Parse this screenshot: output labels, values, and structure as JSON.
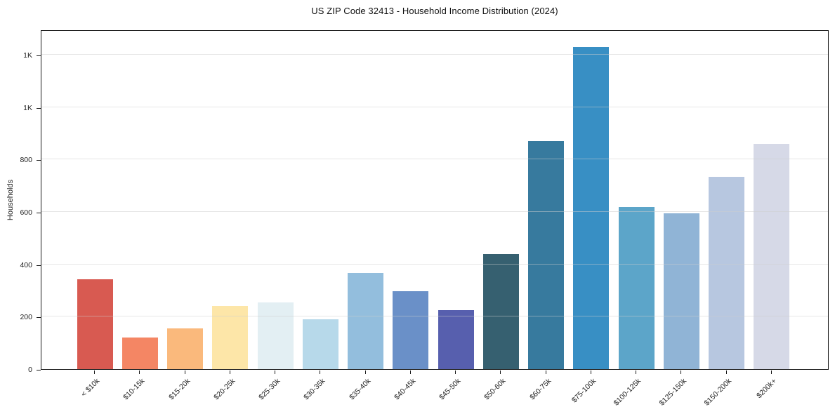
{
  "chart_data": {
    "type": "bar",
    "title": "US ZIP Code 32413 - Household Income Distribution (2024)",
    "xlabel": "",
    "ylabel": "Households",
    "categories": [
      "< $10k",
      "$10-15k",
      "$15-20k",
      "$20-25k",
      "$25-30k",
      "$30-35k",
      "$35-40k",
      "$40-45k",
      "$45-50k",
      "$50-60k",
      "$60-75k",
      "$75-100k",
      "$100-125k",
      "$125-150k",
      "$150-200k",
      "$200k+"
    ],
    "values": [
      343,
      120,
      155,
      240,
      254,
      189,
      366,
      297,
      226,
      440,
      870,
      1230,
      620,
      595,
      735,
      860
    ],
    "bar_colors": [
      "#d85a51",
      "#f48664",
      "#fab97c",
      "#fde6a8",
      "#e3eff3",
      "#b7d9ea",
      "#93bedd",
      "#6a90c8",
      "#575fae",
      "#366070",
      "#377a9e",
      "#388fc4",
      "#5ca5c9",
      "#90b4d6",
      "#b7c7e0",
      "#d6d9e7"
    ],
    "ylim": [
      0,
      1296
    ],
    "yticks": {
      "values": [
        0,
        200,
        400,
        600,
        800,
        1000,
        1200
      ],
      "labels": [
        "0",
        "200",
        "400",
        "600",
        "800",
        "1K",
        "1K"
      ]
    },
    "x_tick_rotation_deg": 45,
    "grid": "horizontal",
    "grid_overlay": true,
    "legend": "none"
  },
  "colors": {
    "background": "#ffffff",
    "axis": "#1a1a1a",
    "grid": "#cdcdcd",
    "text": "#1f1f1f"
  }
}
